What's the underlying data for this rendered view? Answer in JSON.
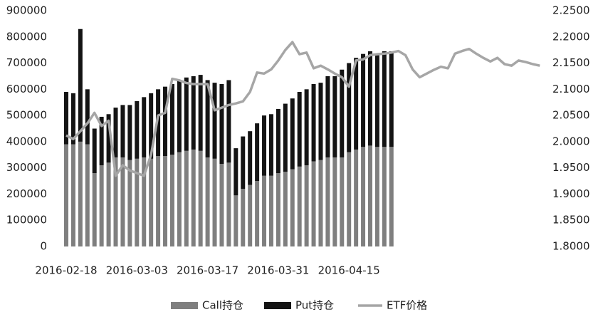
{
  "chart_data": {
    "type": "bar",
    "stacked": true,
    "categories": [
      "2016-02-18",
      null,
      null,
      null,
      null,
      null,
      null,
      null,
      null,
      null,
      "2016-03-03",
      null,
      null,
      null,
      null,
      null,
      null,
      null,
      null,
      null,
      "2016-03-17",
      null,
      null,
      null,
      null,
      null,
      null,
      null,
      null,
      null,
      "2016-03-31",
      null,
      null,
      null,
      null,
      null,
      null,
      null,
      null,
      null,
      "2016-04-15",
      null,
      null,
      null,
      null,
      null,
      null,
      null,
      null,
      null,
      null,
      null,
      null,
      null,
      null,
      null,
      null,
      null,
      null,
      null,
      null,
      null,
      null,
      null,
      null,
      null,
      null,
      null
    ],
    "series": [
      {
        "name": "Call持仓",
        "type": "bar",
        "color": "#7f7f7f",
        "values": [
          390000,
          390000,
          400000,
          390000,
          280000,
          310000,
          320000,
          340000,
          340000,
          330000,
          335000,
          340000,
          335000,
          345000,
          345000,
          350000,
          360000,
          365000,
          370000,
          365000,
          340000,
          335000,
          315000,
          320000,
          195000,
          220000,
          235000,
          250000,
          270000,
          270000,
          280000,
          285000,
          295000,
          305000,
          310000,
          325000,
          330000,
          340000,
          340000,
          340000,
          360000,
          370000,
          380000,
          385000,
          380000,
          380000,
          380000,
          null,
          null,
          null,
          null,
          null,
          null,
          null,
          null,
          null,
          null,
          null,
          null,
          null,
          null,
          null,
          null,
          null,
          null,
          null,
          null,
          null
        ]
      },
      {
        "name": "Put持仓",
        "type": "bar",
        "color": "#141414",
        "values": [
          200000,
          195000,
          430000,
          210000,
          170000,
          185000,
          185000,
          190000,
          200000,
          210000,
          220000,
          230000,
          250000,
          255000,
          265000,
          270000,
          275000,
          280000,
          280000,
          290000,
          295000,
          290000,
          305000,
          315000,
          180000,
          200000,
          205000,
          220000,
          230000,
          235000,
          245000,
          260000,
          270000,
          285000,
          290000,
          295000,
          295000,
          310000,
          310000,
          335000,
          340000,
          350000,
          355000,
          360000,
          350000,
          365000,
          365000,
          null,
          null,
          null,
          null,
          null,
          null,
          null,
          null,
          null,
          null,
          null,
          null,
          null,
          null,
          null,
          null,
          null,
          null,
          null,
          null,
          null
        ]
      },
      {
        "name": "ETF价格",
        "type": "line",
        "axis": "y2",
        "color": "#a6a6a6",
        "values": [
          2.012,
          2.005,
          2.02,
          2.035,
          2.055,
          2.03,
          2.04,
          1.935,
          1.955,
          1.945,
          1.94,
          1.935,
          1.975,
          2.05,
          2.055,
          2.12,
          2.117,
          2.112,
          2.11,
          2.11,
          2.11,
          2.06,
          2.065,
          2.07,
          2.073,
          2.077,
          2.095,
          2.132,
          2.13,
          2.138,
          2.155,
          2.175,
          2.19,
          2.167,
          2.17,
          2.14,
          2.145,
          2.138,
          2.13,
          2.123,
          2.105,
          2.155,
          2.157,
          2.165,
          2.167,
          2.168,
          2.17,
          2.173,
          2.165,
          2.138,
          2.123,
          2.13,
          2.137,
          2.143,
          2.14,
          2.168,
          2.173,
          2.177,
          2.168,
          2.16,
          2.153,
          2.16,
          2.148,
          2.145,
          2.155,
          2.152,
          2.148,
          2.145
        ]
      }
    ],
    "ylim": [
      0,
      900000
    ],
    "yticks": [
      0,
      100000,
      200000,
      300000,
      400000,
      500000,
      600000,
      700000,
      800000,
      900000
    ],
    "y2lim": [
      1.8,
      2.25
    ],
    "y2ticks": [
      {
        "value": 1.8,
        "label": "1.8000"
      },
      {
        "value": 1.85,
        "label": "1.8500"
      },
      {
        "value": 1.9,
        "label": "1.9000"
      },
      {
        "value": 1.95,
        "label": "1.9500"
      },
      {
        "value": 2.0,
        "label": "2.0000"
      },
      {
        "value": 2.05,
        "label": "2.0500"
      },
      {
        "value": 2.1,
        "label": "2.1000"
      },
      {
        "value": 2.15,
        "label": "2.1500"
      },
      {
        "value": 2.2,
        "label": "2.2000"
      },
      {
        "value": 2.25,
        "label": "2.2500"
      }
    ],
    "legend": "bottom"
  }
}
